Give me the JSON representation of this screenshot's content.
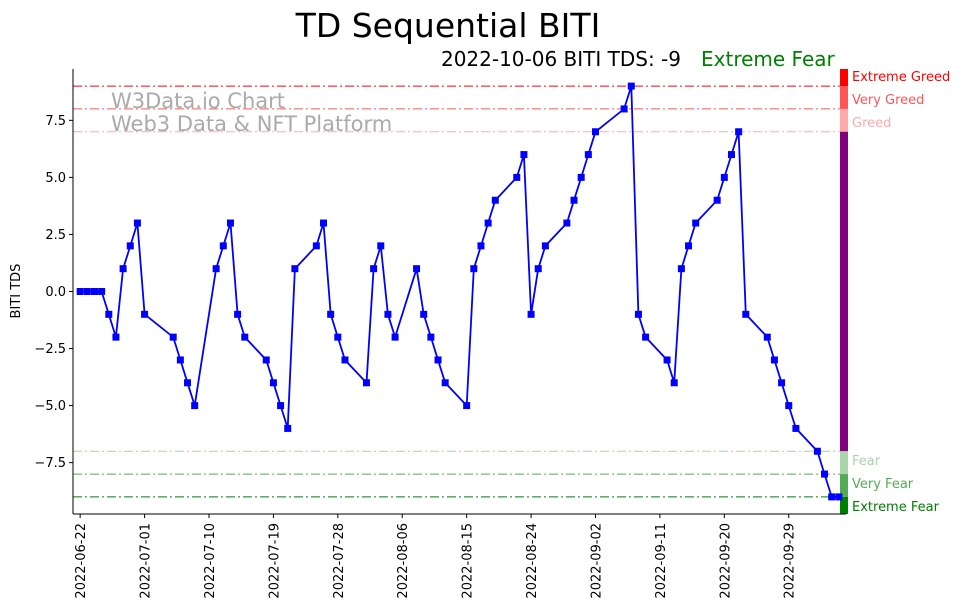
{
  "chart_data": {
    "type": "line",
    "title": "TD Sequential BITI",
    "subtitle": "2022-10-06 BITI TDS: -9",
    "status_label": "Extreme Fear",
    "ylabel": "BITI TDS",
    "xlabel": "",
    "ylim": [
      -9.75,
      9.75
    ],
    "xlim_dates": [
      "2022-06-21",
      "2022-10-07"
    ],
    "watermark": [
      "W3Data.io Chart",
      "Web3 Data & NFT Platform"
    ],
    "y_ticks": [
      -7.5,
      -5.0,
      -2.5,
      0.0,
      2.5,
      5.0,
      7.5
    ],
    "y_tick_labels": [
      "−7.5",
      "−5.0",
      "−2.5",
      "0.0",
      "2.5",
      "5.0",
      "7.5"
    ],
    "x_ticks": [
      "2022-06-22",
      "2022-07-01",
      "2022-07-10",
      "2022-07-19",
      "2022-07-28",
      "2022-08-06",
      "2022-08-15",
      "2022-08-24",
      "2022-09-02",
      "2022-09-11",
      "2022-09-20",
      "2022-09-29"
    ],
    "series": [
      {
        "name": "BITI TDS",
        "color": "#0000ff",
        "marker": "square",
        "x": [
          "2022-06-22",
          "2022-06-23",
          "2022-06-24",
          "2022-06-25",
          "2022-06-26",
          "2022-06-27",
          "2022-06-28",
          "2022-06-29",
          "2022-06-30",
          "2022-07-01",
          "2022-07-05",
          "2022-07-06",
          "2022-07-07",
          "2022-07-08",
          "2022-07-11",
          "2022-07-12",
          "2022-07-13",
          "2022-07-14",
          "2022-07-15",
          "2022-07-18",
          "2022-07-19",
          "2022-07-20",
          "2022-07-21",
          "2022-07-22",
          "2022-07-25",
          "2022-07-26",
          "2022-07-27",
          "2022-07-28",
          "2022-07-29",
          "2022-08-01",
          "2022-08-02",
          "2022-08-03",
          "2022-08-04",
          "2022-08-05",
          "2022-08-08",
          "2022-08-09",
          "2022-08-10",
          "2022-08-11",
          "2022-08-12",
          "2022-08-15",
          "2022-08-16",
          "2022-08-17",
          "2022-08-18",
          "2022-08-19",
          "2022-08-22",
          "2022-08-23",
          "2022-08-24",
          "2022-08-25",
          "2022-08-26",
          "2022-08-29",
          "2022-08-30",
          "2022-08-31",
          "2022-09-01",
          "2022-09-02",
          "2022-09-06",
          "2022-09-07",
          "2022-09-08",
          "2022-09-09",
          "2022-09-12",
          "2022-09-13",
          "2022-09-14",
          "2022-09-15",
          "2022-09-16",
          "2022-09-19",
          "2022-09-20",
          "2022-09-21",
          "2022-09-22",
          "2022-09-23",
          "2022-09-26",
          "2022-09-27",
          "2022-09-28",
          "2022-09-29",
          "2022-09-30",
          "2022-10-03",
          "2022-10-04",
          "2022-10-05",
          "2022-10-06"
        ],
        "values": [
          0,
          0,
          0,
          0,
          -1,
          -2,
          1,
          2,
          3,
          -1,
          -2,
          -3,
          -4,
          -5,
          1,
          2,
          3,
          -1,
          -2,
          -3,
          -4,
          -5,
          -6,
          1,
          2,
          3,
          -1,
          -2,
          -3,
          -4,
          1,
          2,
          -1,
          -2,
          1,
          -1,
          -2,
          -3,
          -4,
          -5,
          1,
          2,
          3,
          4,
          5,
          6,
          -1,
          1,
          2,
          3,
          4,
          5,
          6,
          7,
          8,
          9,
          -1,
          -2,
          -3,
          -4,
          1,
          2,
          3,
          4,
          5,
          6,
          7,
          -1,
          -2,
          -3,
          -4,
          -5,
          -6,
          -7,
          -8,
          -9,
          -9
        ]
      }
    ],
    "levels": [
      {
        "name": "Extreme Greed",
        "value": 9,
        "color": "#ff0000"
      },
      {
        "name": "Very Greed",
        "value": 8,
        "color": "#ff5555"
      },
      {
        "name": "Greed",
        "value": 7,
        "color": "#ffaaaa"
      },
      {
        "name": "Fear",
        "value": -7,
        "color": "#aad4aa"
      },
      {
        "name": "Very Fear",
        "value": -8,
        "color": "#55aa55"
      },
      {
        "name": "Extreme Fear",
        "value": -9,
        "color": "#008000"
      }
    ],
    "neutral_band_color": "#800080",
    "status_color": "#008000"
  }
}
